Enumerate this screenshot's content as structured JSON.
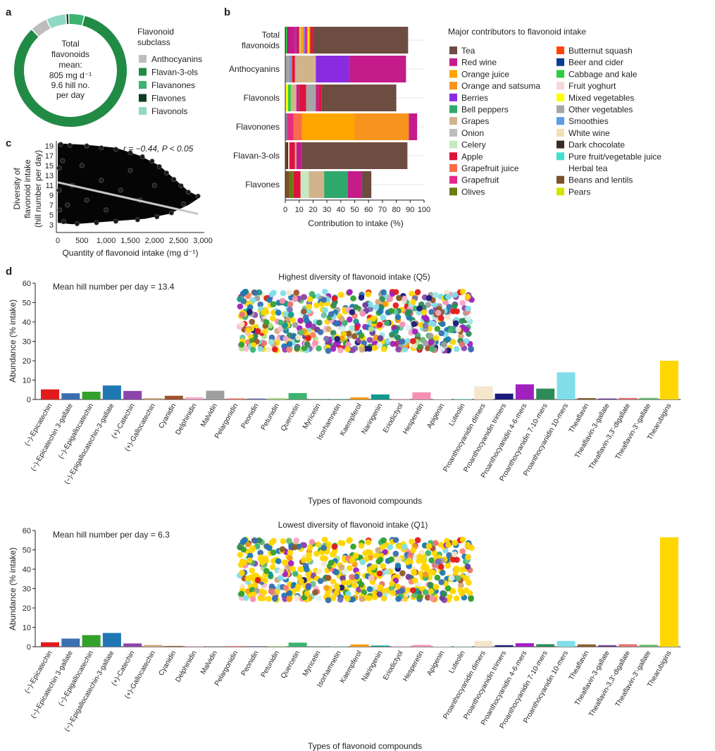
{
  "panel_letters": {
    "a": "a",
    "b": "b",
    "c": "c",
    "d": "d"
  },
  "colors": {
    "Tea": "#6d4c41",
    "Red wine": "#c51b8a",
    "Orange juice": "#ffa500",
    "Orange and satsuma": "#f7941d",
    "Berries": "#8a2be2",
    "Bell peppers": "#2ea96b",
    "Grapes": "#d2b48c",
    "Onion": "#bdbdbd",
    "Celery": "#c7e9c0",
    "Apple": "#dc143c",
    "Grapefruit juice": "#fb6a4a",
    "Grapefruit": "#e7298a",
    "Olives": "#6b7c12",
    "Butternut squash": "#ff4500",
    "Beer and cider": "#0b3d91",
    "Cabbage and kale": "#2ecc40",
    "Fruit yoghurt": "#f8d7da",
    "Mixed vegetables": "#ffff00",
    "Other vegetables": "#a6a6a6",
    "Smoothies": "#5c9ce6",
    "White wine": "#f5deb3",
    "Dark chocolate": "#3a2a22",
    "Pure fruit/vegetable juice": "#40e0d0",
    "Herbal tea": "#ffffff",
    "Beans and lentils": "#7b5128",
    "Pears": "#d4e600",
    "Anthocyanins": "#bdbdbd",
    "Flavan-3-ols": "#218b45",
    "Flavanones": "#3cb371",
    "Flavones": "#0b3d1f",
    "Flavonols": "#8fd9c3"
  },
  "panel_a": {
    "center_lines": [
      "Total",
      "flavonoids",
      "mean:",
      "805 mg d⁻¹",
      "9.6 hill no.",
      "per day"
    ],
    "legend_title_lines": [
      "Flavonoid",
      "subclass"
    ]
  },
  "panel_c": {
    "annotation": "r = −0.44, P < 0.05",
    "ylabel_lines": [
      "Diversity of",
      "flavonoid intake",
      "(hill number per day)"
    ],
    "xlabel": "Quantity of flavonoid intake (mg d⁻¹)"
  },
  "panel_b": {
    "xlabel": "Contribution to intake (%)",
    "legend_title": "Major contributors to flavonoid intake",
    "legend_col1": [
      "Tea",
      "Red wine",
      "Orange juice",
      "Orange and satsuma",
      "Berries",
      "Bell peppers",
      "Grapes",
      "Onion",
      "Celery",
      "Apple",
      "Grapefruit juice",
      "Grapefruit",
      "Olives"
    ],
    "legend_col2": [
      "Butternut squash",
      "Beer and cider",
      "Cabbage and kale",
      "Fruit yoghurt",
      "Mixed vegetables",
      "Other vegetables",
      "Smoothies",
      "White wine",
      "Dark chocolate",
      "Pure fruit/vegetable juice",
      "Herbal tea",
      "Beans and lentils",
      "Pears"
    ]
  },
  "panel_d": {
    "xlabel": "Types of flavonoid compounds",
    "ylabel": "Abundance (% intake)",
    "top_title": "Highest diversity of flavonoid intake (Q5)",
    "top_note": "Mean hill number per day = 13.4",
    "bottom_title": "Lowest diversity of flavonoid intake (Q1)",
    "bottom_note": "Mean hill number per day = 6.3"
  },
  "chart_data": [
    {
      "type": "pie",
      "panel": "a",
      "categories": [
        "Anthocyanins",
        "Flavan-3-ols",
        "Flavanones",
        "Flavones",
        "Flavonols"
      ],
      "values": [
        5,
        84,
        4.5,
        0.8,
        5.7
      ]
    },
    {
      "type": "scatter",
      "panel": "c",
      "xlim": [
        0,
        3000
      ],
      "ylim": [
        2,
        20
      ],
      "x_ticks": [
        0,
        500,
        1000,
        1500,
        2000,
        2500,
        3000
      ],
      "x_tick_labels": [
        "0",
        "500",
        "1,000",
        "1,500",
        "2,000",
        "2,500",
        "3,000"
      ],
      "y_ticks": [
        3,
        5,
        7,
        9,
        11,
        13,
        15,
        17,
        19
      ],
      "fit_line": {
        "x": [
          0,
          2900
        ],
        "y": [
          11.6,
          5.2
        ]
      },
      "points": [
        {
          "x": 60,
          "y": 19.3
        },
        {
          "x": 250,
          "y": 19.1
        },
        {
          "x": 600,
          "y": 19.0
        },
        {
          "x": 900,
          "y": 18.6
        },
        {
          "x": 1200,
          "y": 18.3
        },
        {
          "x": 1500,
          "y": 17.6
        },
        {
          "x": 1750,
          "y": 16.8
        },
        {
          "x": 1950,
          "y": 15.9
        },
        {
          "x": 2100,
          "y": 14.8
        },
        {
          "x": 2250,
          "y": 13.5
        },
        {
          "x": 2400,
          "y": 12.2
        },
        {
          "x": 2550,
          "y": 10.9
        },
        {
          "x": 2700,
          "y": 9.6
        },
        {
          "x": 2900,
          "y": 8.8
        },
        {
          "x": 2600,
          "y": 7.2
        },
        {
          "x": 2350,
          "y": 5.4
        },
        {
          "x": 2050,
          "y": 4.6
        },
        {
          "x": 1650,
          "y": 4.0
        },
        {
          "x": 1200,
          "y": 3.7
        },
        {
          "x": 800,
          "y": 3.4
        },
        {
          "x": 400,
          "y": 3.2
        },
        {
          "x": 120,
          "y": 3.6
        },
        {
          "x": 40,
          "y": 6.0
        },
        {
          "x": 30,
          "y": 10.0
        },
        {
          "x": 30,
          "y": 14.5
        },
        {
          "x": 100,
          "y": 16.0
        },
        {
          "x": 500,
          "y": 15.0
        },
        {
          "x": 900,
          "y": 12.0
        },
        {
          "x": 1300,
          "y": 10.0
        },
        {
          "x": 1700,
          "y": 8.0
        },
        {
          "x": 600,
          "y": 8.0
        },
        {
          "x": 1000,
          "y": 6.0
        },
        {
          "x": 300,
          "y": 11.0
        },
        {
          "x": 1500,
          "y": 14.0
        },
        {
          "x": 2000,
          "y": 11.0
        },
        {
          "x": 200,
          "y": 7.0
        }
      ]
    },
    {
      "type": "bar",
      "panel": "b",
      "orientation": "horizontal",
      "stacked": true,
      "categories": [
        "Total flavonoids",
        "Anthocyanins",
        "Flavonols",
        "Flavonones",
        "Flavan-3-ols",
        "Flavones"
      ],
      "category_lines": [
        [
          "Total",
          "flavonoids"
        ],
        [
          "Anthocyanins"
        ],
        [
          "Flavonols"
        ],
        [
          "Flavonones"
        ],
        [
          "Flavan-3-ols"
        ],
        [
          "Flavones"
        ]
      ],
      "xlim": [
        0,
        100
      ],
      "x_ticks": [
        0,
        10,
        20,
        30,
        40,
        50,
        60,
        70,
        80,
        90,
        100
      ],
      "stacks": [
        [
          [
            "Beans and lentils",
            0.5
          ],
          [
            "Cabbage and kale",
            1
          ],
          [
            "Dark chocolate",
            0.5
          ],
          [
            "Red wine",
            5
          ],
          [
            "Berries",
            1
          ],
          [
            "Apple",
            2
          ],
          [
            "Onion",
            1
          ],
          [
            "Orange juice",
            2
          ],
          [
            "Smoothies",
            1
          ],
          [
            "Grapefruit",
            2
          ],
          [
            "Mixed vegetables",
            1
          ],
          [
            "Orange and satsuma",
            1
          ],
          [
            "Apple",
            2
          ],
          [
            "Tea",
            68.5
          ]
        ],
        [
          [
            "Other vegetables",
            3
          ],
          [
            "Smoothies",
            1
          ],
          [
            "Grapefruit juice",
            1
          ],
          [
            "Apple",
            2
          ],
          [
            "Grapes",
            15
          ],
          [
            "Berries",
            24
          ],
          [
            "Red wine",
            41
          ]
        ],
        [
          [
            "Mixed vegetables",
            2
          ],
          [
            "Cabbage and kale",
            2
          ],
          [
            "Grapes",
            4
          ],
          [
            "Red wine",
            2
          ],
          [
            "Apple",
            5
          ],
          [
            "Other vegetables",
            7
          ],
          [
            "Red wine",
            2
          ],
          [
            "Apple",
            2
          ],
          [
            "Tea",
            54
          ]
        ],
        [
          [
            "Smoothies",
            1
          ],
          [
            "Butternut squash",
            1
          ],
          [
            "Grapefruit",
            4
          ],
          [
            "Grapefruit juice",
            6
          ],
          [
            "Orange juice",
            38
          ],
          [
            "Orange and satsuma",
            39
          ],
          [
            "Red wine",
            6
          ]
        ],
        [
          [
            "Beans and lentils",
            1
          ],
          [
            "Dark chocolate",
            1
          ],
          [
            "Fruit yoghurt",
            1
          ],
          [
            "Apple",
            4
          ],
          [
            "Grapes",
            1
          ],
          [
            "Red wine",
            4
          ],
          [
            "Tea",
            76
          ]
        ],
        [
          [
            "Beans and lentils",
            3
          ],
          [
            "Olives",
            3
          ],
          [
            "Apple",
            5
          ],
          [
            "Celery",
            6
          ],
          [
            "Grapes",
            11
          ],
          [
            "Bell peppers",
            17
          ],
          [
            "Red wine",
            10
          ],
          [
            "Tea",
            7
          ]
        ]
      ]
    },
    {
      "type": "bar",
      "panel": "d-top",
      "title": "Highest diversity of flavonoid intake (Q5)",
      "xlabel": "Types of flavonoid compounds",
      "ylabel": "Abundance (% intake)",
      "ylim": [
        0,
        60
      ],
      "y_ticks": [
        0,
        10,
        20,
        30,
        40,
        50,
        60
      ],
      "categories": [
        "(−)-Epicatechin",
        "(−)-Epicatechin 3-gallate",
        "(−)-Epigallocatechin",
        "(−)-Epigallocatechin-3-gallate",
        "(+)-Catechin",
        "(+)-Gallocatechin",
        "Cyanidin",
        "Delphinidin",
        "Malvidin",
        "Pelargonidin",
        "Peonidin",
        "Petunidin",
        "Quercetin",
        "Myricetin",
        "Isorhamnetin",
        "Kaempferol",
        "Naringenin",
        "Eriodictyol",
        "Hesperetin",
        "Apigenin",
        "Luteolin",
        "Proanthocyanidin dimers",
        "Proanthocyanidin trimers",
        "Proanthocyanidin 4-6-mers",
        "Proanthocyanidin 7-10-mers",
        "Proanthocyanidin 10-mers",
        "Theaflavin",
        "Theaflavin-3-gallate",
        "Theaflavin-3,3’-digallate",
        "Theaflavin-3’-gallate",
        "Thearubigins"
      ],
      "bar_colors": [
        "#e31a1c",
        "#3a6fb0",
        "#33a02c",
        "#1f78b4",
        "#8e44ad",
        "#d2a679",
        "#a0522d",
        "#f4a6c8",
        "#9e9e9e",
        "#fb8072",
        "#7570b3",
        "#b2df8a",
        "#3cb371",
        "#2e8b57",
        "#66c2a5",
        "#f39c12",
        "#11998e",
        "#f8bbd0",
        "#f78fb3",
        "#d9f0f7",
        "#9fe7e0",
        "#f5e6cc",
        "#1a1a7a",
        "#a020c0",
        "#2e8b57",
        "#80deea",
        "#8b5a2b",
        "#6a3d9a",
        "#e57373",
        "#66bb6a",
        "#ffd700"
      ],
      "values": [
        5.2,
        3.2,
        4.0,
        7.2,
        4.4,
        0.7,
        1.9,
        1.1,
        4.5,
        0.6,
        0.5,
        0.8,
        3.3,
        0.2,
        0.3,
        1.1,
        2.6,
        0.4,
        3.7,
        0.3,
        0.4,
        6.8,
        3.0,
        7.8,
        5.6,
        14.0,
        0.7,
        0.5,
        0.8,
        0.8,
        20.0
      ]
    },
    {
      "type": "bar",
      "panel": "d-bottom",
      "title": "Lowest diversity of flavonoid intake (Q1)",
      "xlabel": "Types of flavonoid compounds",
      "ylabel": "Abundance (% intake)",
      "ylim": [
        0,
        60
      ],
      "y_ticks": [
        0,
        10,
        20,
        30,
        40,
        50,
        60
      ],
      "categories": [
        "(−)-Epicatechin",
        "(−)-Epicatechin 3-gallate",
        "(−)-Epigallocatechin",
        "(−)-Epigallocatechin-3-gallate",
        "(+)-Catechin",
        "(+)-Gallocatechin",
        "Cyanidin",
        "Delphinidin",
        "Malvidin",
        "Pelargonidin",
        "Peonidin",
        "Petunidin",
        "Quercetin",
        "Myricetin",
        "Isorhamnetin",
        "Kaempferol",
        "Naringenin",
        "Eriodictyol",
        "Hesperetin",
        "Apigenin",
        "Luteolin",
        "Proanthocyanidin dimers",
        "Proanthocyanidin trimers",
        "Proanthocyanidin 4-6-mers",
        "Proanthocyanidin 7-10-mers",
        "Proanthocyanidin 10-mers",
        "Theaflavin",
        "Theaflavin-3-gallate",
        "Theaflavin-3,3’-digallate",
        "Theaflavin-3’-gallate",
        "Thearubigins"
      ],
      "bar_colors": [
        "#e31a1c",
        "#3a6fb0",
        "#33a02c",
        "#1f78b4",
        "#8e44ad",
        "#d2a679",
        "#a0522d",
        "#f4a6c8",
        "#9e9e9e",
        "#fb8072",
        "#7570b3",
        "#b2df8a",
        "#3cb371",
        "#2e8b57",
        "#66c2a5",
        "#f39c12",
        "#11998e",
        "#f8bbd0",
        "#f78fb3",
        "#d9f0f7",
        "#9fe7e0",
        "#f5e6cc",
        "#1a1a7a",
        "#a020c0",
        "#2e8b57",
        "#80deea",
        "#8b5a2b",
        "#6a3d9a",
        "#e57373",
        "#66bb6a",
        "#ffd700"
      ],
      "values": [
        2.3,
        4.2,
        6.0,
        7.1,
        1.7,
        0.9,
        0.4,
        0.3,
        0.3,
        0.4,
        0.3,
        0.4,
        2.1,
        0.2,
        0.2,
        1.2,
        0.6,
        0.3,
        0.9,
        0.2,
        0.2,
        3.0,
        0.8,
        1.8,
        1.3,
        3.0,
        1.2,
        0.8,
        1.3,
        1.0,
        56.5
      ]
    }
  ]
}
